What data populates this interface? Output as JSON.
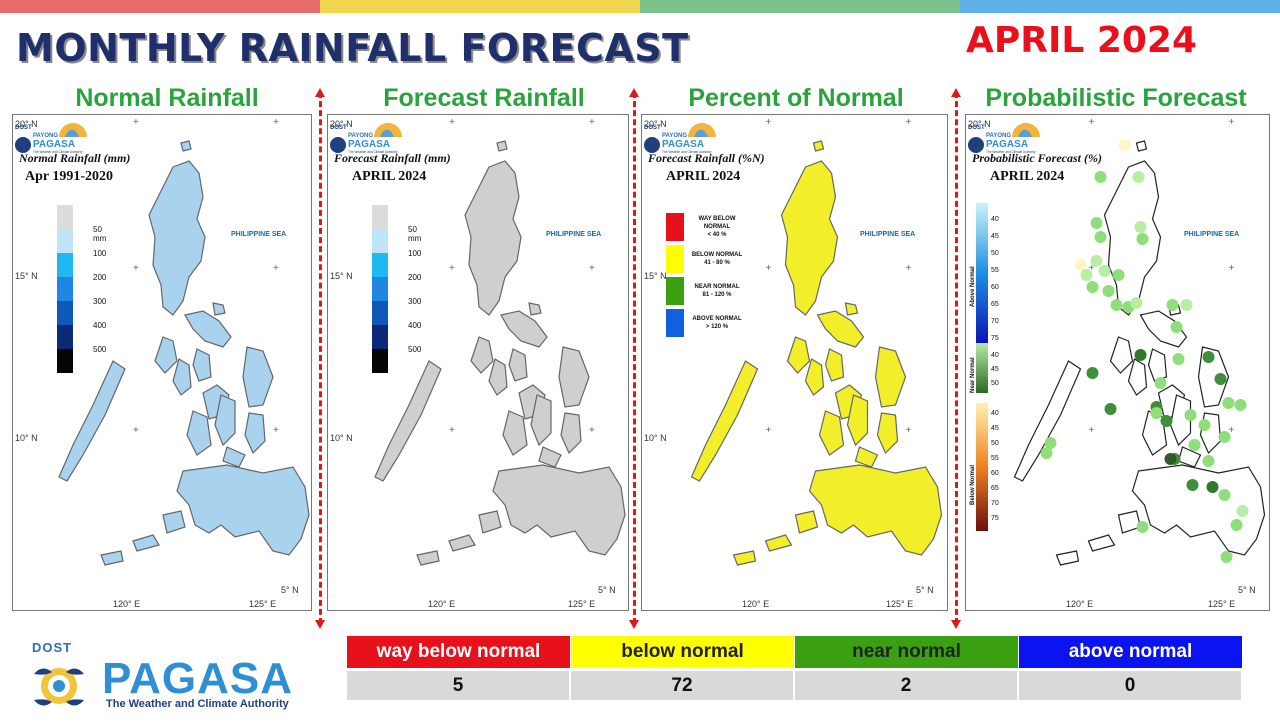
{
  "colors": {
    "stripes": [
      "#e86c6c",
      "#f2d64f",
      "#7cc28c",
      "#5fb0e4"
    ],
    "title": "#1f2f6b",
    "date": "#e8101a",
    "panel_title": "#2aa33c",
    "divider": "#e01818",
    "way_below": "#e8101a",
    "below": "#ffff00",
    "near": "#3aa012",
    "above": "#0a14f0",
    "table_value_bg": "#d9d9d9"
  },
  "header": {
    "title": "MONTHLY RAINFALL FORECAST",
    "date": "APRIL 2024"
  },
  "panels": [
    {
      "title": "Normal Rainfall",
      "map_title": "Normal Rainfall (mm)",
      "map_subtitle": "Apr 1991-2020",
      "fill": "#a9d2ee",
      "legend": [
        "50 mm",
        "100",
        "200",
        "300",
        "400",
        "500"
      ],
      "legend_colors": [
        "#dcdcdc",
        "#bfe3f7",
        "#1fb8f0",
        "#1e86e3",
        "#1058b8",
        "#0a2a78",
        "#050505"
      ]
    },
    {
      "title": "Forecast Rainfall",
      "map_title": "Forecast Rainfall (mm)",
      "map_subtitle": "APRIL 2024",
      "fill": "#cfcfcf",
      "legend": [
        "50 mm",
        "100",
        "200",
        "300",
        "400",
        "500"
      ],
      "legend_colors": [
        "#dcdcdc",
        "#bfe3f7",
        "#1fb8f0",
        "#1e86e3",
        "#1058b8",
        "#0a2a78",
        "#050505"
      ]
    },
    {
      "title": "Percent of Normal",
      "map_title": "Forecast Rainfall (%N)",
      "map_subtitle": "APRIL 2024",
      "fill": "#f2ef2a",
      "categories": [
        {
          "label": "WAY BELOW NORMAL",
          "range": "< 40 %",
          "color": "#e8101a"
        },
        {
          "label": "BELOW NORMAL",
          "range": "41 - 80 %",
          "color": "#ffff00"
        },
        {
          "label": "NEAR NORMAL",
          "range": "81 - 120 %",
          "color": "#3aa012"
        },
        {
          "label": "ABOVE NORMAL",
          "range": "> 120 %",
          "color": "#1060e0"
        }
      ]
    },
    {
      "title": "Probabilistic Forecast",
      "map_title": "Probabilistic Forecast (%)",
      "map_subtitle": "APRIL 2024",
      "fill": "#ffffff",
      "above_label": "Above Normal",
      "near_label": "Near Normal",
      "below_label": "Below Normal",
      "above_ticks": [
        "40",
        "45",
        "50",
        "55",
        "60",
        "65",
        "70",
        "75"
      ],
      "near_ticks": [
        "40",
        "45",
        "50"
      ],
      "below_ticks": [
        "40",
        "45",
        "50",
        "55",
        "60",
        "65",
        "70",
        "75"
      ]
    }
  ],
  "map_labels": {
    "sea": "PHILIPPINE SEA",
    "lat_20": "20° N",
    "lat_15": "15° N",
    "lat_10": "10° N",
    "lat_5": "5° N",
    "lon_120": "120° E",
    "lon_125": "125° E",
    "mini_logo_dost": "DOST",
    "mini_logo_payong": "PAYONG",
    "mini_logo_name": "PAGASA",
    "mini_logo_tag": "The Weather and Climate Authority"
  },
  "summary": {
    "headers": [
      {
        "label": "way below normal",
        "bg": "#e8101a",
        "fg": "#ffffff"
      },
      {
        "label": "below normal",
        "bg": "#ffff00",
        "fg": "#222222"
      },
      {
        "label": "near normal",
        "bg": "#3aa012",
        "fg": "#222222"
      },
      {
        "label": "above normal",
        "bg": "#0a14f0",
        "fg": "#ffffff"
      }
    ],
    "values": [
      "5",
      "72",
      "2",
      "0"
    ]
  },
  "logo": {
    "dost": "DOST",
    "name": "PAGASA",
    "tagline": "The Weather and Climate Authority"
  }
}
